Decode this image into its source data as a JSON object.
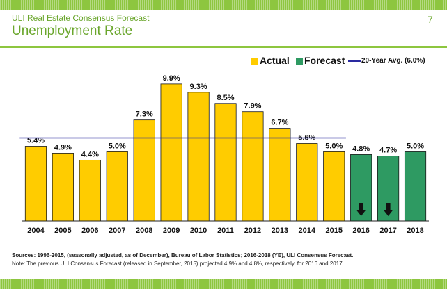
{
  "header": {
    "kicker": "ULI Real Estate Consensus Forecast",
    "title": "Unemployment Rate",
    "page_number": "7"
  },
  "legend": {
    "actual_label": "Actual",
    "forecast_label": "Forecast",
    "avg_label": "20-Year Avg. (6.0%)"
  },
  "footnotes": {
    "sources": "Sources: 1996-2015, (seasonally adjusted, as of December), Bureau of Labor Statistics; 2016-2018 (YE), ULI Consensus Forecast.",
    "note": "Note: The previous ULI Consensus Forecast (released in September, 2015) projected 4.9% and 4.8%, respectively, for 2016 and 2017."
  },
  "colors": {
    "actual": "#ffcc00",
    "forecast": "#2e9a62",
    "average_line": "#2a2aa0",
    "accent_green": "#8dc63f",
    "header_text": "#6aa62c"
  },
  "chart_data": {
    "type": "bar",
    "title": "Unemployment Rate",
    "categories": [
      "2004",
      "2005",
      "2006",
      "2007",
      "2008",
      "2009",
      "2010",
      "2011",
      "2012",
      "2013",
      "2014",
      "2015",
      "2016",
      "2017",
      "2018"
    ],
    "values": [
      5.4,
      4.9,
      4.4,
      5.0,
      7.3,
      9.9,
      9.3,
      8.5,
      7.9,
      6.7,
      5.6,
      5.0,
      4.8,
      4.7,
      5.0
    ],
    "labels": [
      "5.4%",
      "4.9%",
      "4.4%",
      "5.0%",
      "7.3%",
      "9.9%",
      "9.3%",
      "8.5%",
      "7.9%",
      "6.7%",
      "5.6%",
      "5.0%",
      "4.8%",
      "4.7%",
      "5.0%"
    ],
    "status": [
      "actual",
      "actual",
      "actual",
      "actual",
      "actual",
      "actual",
      "actual",
      "actual",
      "actual",
      "actual",
      "actual",
      "actual",
      "forecast",
      "forecast",
      "forecast"
    ],
    "down_arrow": [
      false,
      false,
      false,
      false,
      false,
      false,
      false,
      false,
      false,
      false,
      false,
      false,
      true,
      true,
      false
    ],
    "reference_line": {
      "value": 6.0,
      "label": "20-Year Avg. (6.0%)",
      "start_category": "2004",
      "end_category": "2015"
    },
    "series": [
      {
        "name": "Actual",
        "categories": [
          "2004",
          "2005",
          "2006",
          "2007",
          "2008",
          "2009",
          "2010",
          "2011",
          "2012",
          "2013",
          "2014",
          "2015"
        ]
      },
      {
        "name": "Forecast",
        "categories": [
          "2016",
          "2017",
          "2018"
        ]
      }
    ],
    "ylim": [
      0,
      11.2
    ],
    "xlabel": "",
    "ylabel": "",
    "grid": false,
    "legend_position": "top-right"
  }
}
